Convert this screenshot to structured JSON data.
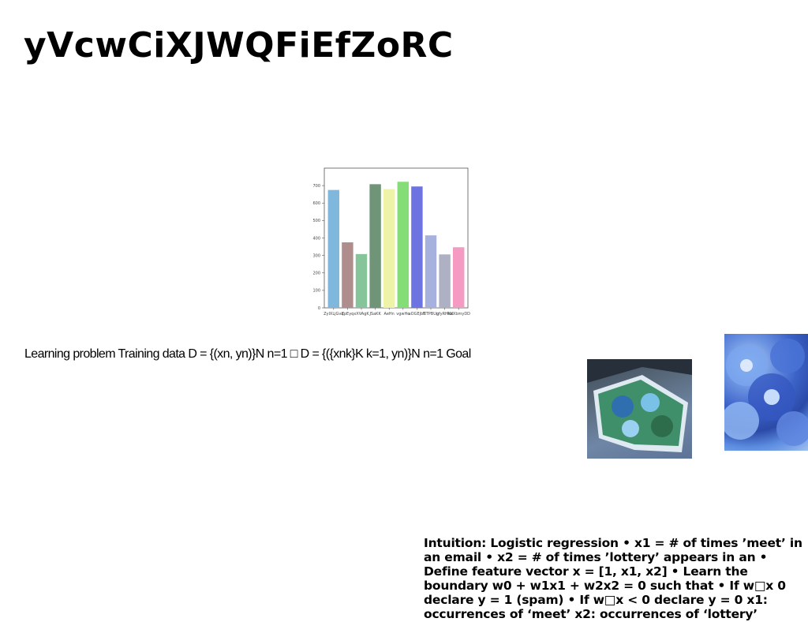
{
  "slide": {
    "title": "yVcwCiXJWQFiEfZoRC",
    "body_line": "Learning problem Training data D = {(xn, yn)}N n=1 □ D = {({xnk}K k=1, yn)}N n=1 Goal",
    "intuition": "Intuition: Logistic regression • x1 = # of times ’meet’ in an email • x2 = # of times ’lottery’ appears in an • Define feature vector x = [1, x1, x2] • Learn the boundary w0 + w1x1 + w2x2 = 0 such that • If w□x 0 declare y = 1 (spam) • If w□x < 0 declare y = 0 x1: occurrences of ‘meet’ x2: occurrences of ‘lottery’"
  },
  "images": [
    {
      "name": "magazine-photo",
      "description_icon": "photo-icon"
    },
    {
      "name": "blue-flowers-photo",
      "description_icon": "photo-icon"
    }
  ],
  "chart_data": {
    "type": "bar",
    "title": "",
    "xlabel": "",
    "ylabel": "",
    "ylim": [
      0,
      800
    ],
    "yticks": [
      0,
      100,
      200,
      300,
      400,
      500,
      600,
      700
    ],
    "categories": [
      "ZyIXLjGvq",
      "ZpEyq",
      "xXVAgK",
      "JSaKK",
      "AeHn",
      "vgwHo",
      "uOGEjbT",
      "NTPBUq",
      "gfyRHKK",
      "RwXbmyDD"
    ],
    "values": [
      675,
      375,
      308,
      708,
      680,
      722,
      695,
      415,
      306,
      347
    ],
    "colors": [
      "#7fb8dc",
      "#b08d8d",
      "#86c59a",
      "#6f9478",
      "#eef3a8",
      "#85dd78",
      "#6d73e0",
      "#a6b1dd",
      "#aeb0c4",
      "#f49ac3"
    ],
    "grid": false,
    "legend": "none"
  }
}
